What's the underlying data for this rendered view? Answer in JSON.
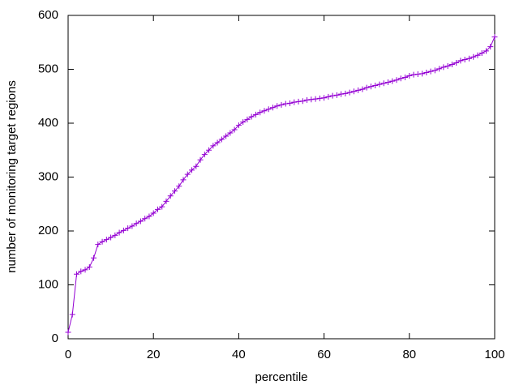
{
  "chart_data": {
    "type": "line",
    "x_label": "percentile",
    "y_label": "number of monitoring target regions",
    "color": "#9400d3",
    "marker": "+",
    "x": [
      0,
      1,
      2,
      3,
      4,
      5,
      6,
      7,
      8,
      9,
      10,
      11,
      12,
      13,
      14,
      15,
      16,
      17,
      18,
      19,
      20,
      21,
      22,
      23,
      24,
      25,
      26,
      27,
      28,
      29,
      30,
      31,
      32,
      33,
      34,
      35,
      36,
      37,
      38,
      39,
      40,
      41,
      42,
      43,
      44,
      45,
      46,
      47,
      48,
      49,
      50,
      51,
      52,
      53,
      54,
      55,
      56,
      57,
      58,
      59,
      60,
      61,
      62,
      63,
      64,
      65,
      66,
      67,
      68,
      69,
      70,
      71,
      72,
      73,
      74,
      75,
      76,
      77,
      78,
      79,
      80,
      81,
      82,
      83,
      84,
      85,
      86,
      87,
      88,
      89,
      90,
      91,
      92,
      93,
      94,
      95,
      96,
      97,
      98,
      99,
      100
    ],
    "values": [
      12,
      45,
      120,
      125,
      128,
      133,
      150,
      175,
      180,
      184,
      188,
      192,
      197,
      201,
      205,
      209,
      214,
      218,
      223,
      227,
      233,
      240,
      245,
      255,
      265,
      274,
      283,
      295,
      305,
      313,
      320,
      332,
      342,
      350,
      358,
      364,
      370,
      376,
      382,
      388,
      396,
      402,
      407,
      412,
      416,
      420,
      423,
      426,
      429,
      432,
      434,
      436,
      437,
      439,
      440,
      441,
      443,
      444,
      445,
      446,
      447,
      449,
      451,
      452,
      454,
      455,
      457,
      459,
      461,
      463,
      466,
      468,
      470,
      472,
      474,
      476,
      478,
      480,
      483,
      485,
      488,
      490,
      491,
      492,
      494,
      496,
      498,
      501,
      504,
      506,
      509,
      512,
      516,
      518,
      520,
      523,
      526,
      530,
      534,
      542,
      560
    ],
    "xlim": [
      0,
      100
    ],
    "xticks": [
      0,
      20,
      40,
      60,
      80,
      100
    ],
    "ylim": [
      0,
      600
    ],
    "yticks": [
      0,
      100,
      200,
      300,
      400,
      500,
      600
    ]
  }
}
